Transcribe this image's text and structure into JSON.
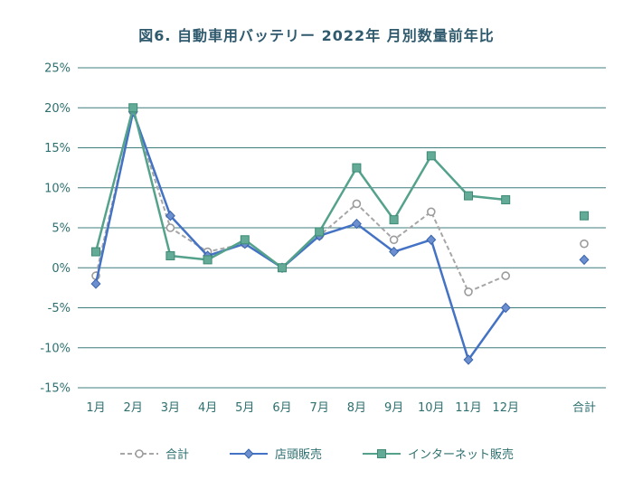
{
  "chart_data": {
    "type": "line",
    "title": "図6. 自動車用バッテリー 2022年 月別数量前年比",
    "categories": [
      "1月",
      "2月",
      "3月",
      "4月",
      "5月",
      "6月",
      "7月",
      "8月",
      "9月",
      "10月",
      "11月",
      "12月",
      "合計"
    ],
    "series": [
      {
        "name": "合計",
        "marker": "circle",
        "color": "#a6a6a6",
        "dash": "dashed",
        "line_width": 2,
        "marker_fill": "#ffffff",
        "marker_stroke": "#9b9b9b",
        "values": [
          -1,
          19.5,
          5,
          2,
          3,
          0,
          4,
          8,
          3.5,
          7,
          -3,
          -1,
          3
        ]
      },
      {
        "name": "店頭販売",
        "marker": "diamond",
        "color": "#4472c4",
        "dash": "solid",
        "line_width": 2.5,
        "marker_fill": "#6c8fd0",
        "marker_stroke": "#3b64ad",
        "values": [
          -2,
          19.5,
          6.5,
          1.5,
          3,
          0,
          4,
          5.5,
          2,
          3.5,
          -11.5,
          -5,
          1
        ]
      },
      {
        "name": "インターネット販売",
        "marker": "square",
        "color": "#55a28c",
        "dash": "solid",
        "line_width": 2.5,
        "marker_fill": "#63ab96",
        "marker_stroke": "#3d8a75",
        "values": [
          2,
          20,
          1.5,
          1,
          3.5,
          0,
          4.5,
          12.5,
          6,
          14,
          9,
          8.5,
          6.5
        ]
      }
    ],
    "ylim": [
      -15,
      25
    ],
    "ytick_step": 5,
    "ytick_labels": [
      "25%",
      "20%",
      "15%",
      "10%",
      "5%",
      "0%",
      "-5%",
      "-10%",
      "-15%"
    ],
    "grid": true,
    "legend_position": "bottom"
  },
  "colors": {
    "title": "#2f5a6e",
    "axis_text": "#2e6f6f",
    "gridline": "#3f7c7c",
    "series_total": "#a6a6a6",
    "series_store": "#4472c4",
    "series_internet": "#55a28c"
  }
}
